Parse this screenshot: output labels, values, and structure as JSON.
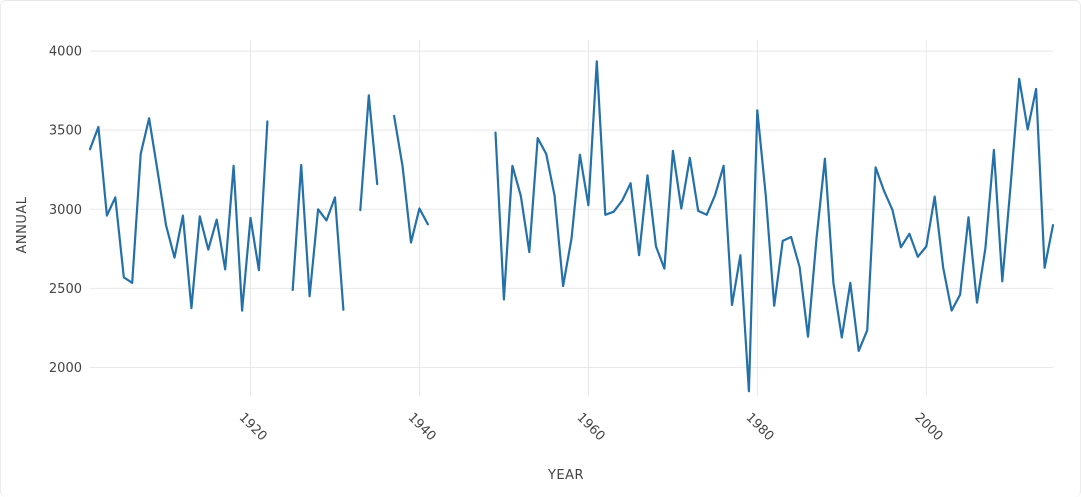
{
  "chart_data": {
    "type": "line",
    "xlabel": "YEAR",
    "ylabel": "ANNUAL",
    "x_ticks": [
      1920,
      1940,
      1960,
      1980,
      2000
    ],
    "y_ticks": [
      2000,
      2500,
      3000,
      3500,
      4000
    ],
    "xlim": [
      1901,
      2015
    ],
    "ylim": [
      1820,
      4070
    ],
    "grid": true,
    "color": "#2471a9",
    "series": [
      {
        "x": [
          1901,
          1902,
          1903,
          1904,
          1905,
          1906,
          1907,
          1908,
          1909,
          1910,
          1911,
          1912,
          1913,
          1914,
          1915,
          1916,
          1917,
          1918,
          1919,
          1920,
          1921,
          1922,
          1923,
          1924,
          1925,
          1926,
          1927,
          1928,
          1929,
          1930,
          1931,
          1932,
          1933,
          1934,
          1935,
          1936,
          1937,
          1938,
          1939,
          1940,
          1941,
          1942,
          1943,
          1944,
          1945,
          1946,
          1947,
          1948,
          1949,
          1950,
          1951,
          1952,
          1953,
          1954,
          1955,
          1956,
          1957,
          1958,
          1959,
          1960,
          1961,
          1962,
          1963,
          1964,
          1965,
          1966,
          1967,
          1968,
          1969,
          1970,
          1971,
          1972,
          1973,
          1974,
          1975,
          1976,
          1977,
          1978,
          1979,
          1980,
          1981,
          1982,
          1983,
          1984,
          1985,
          1986,
          1987,
          1988,
          1989,
          1990,
          1991,
          1992,
          1993,
          1994,
          1995,
          1996,
          1997,
          1998,
          1999,
          2000,
          2001,
          2002,
          2003,
          2004,
          2005,
          2006,
          2007,
          2008,
          2009,
          2010,
          2011,
          2012,
          2013,
          2014,
          2015
        ],
        "values": [
          3380,
          3520,
          2960,
          3075,
          2570,
          2535,
          3350,
          3575,
          3240,
          2900,
          2695,
          2960,
          2375,
          2955,
          2745,
          2935,
          2620,
          3275,
          2360,
          2945,
          2615,
          3555,
          null,
          null,
          2490,
          3280,
          2450,
          3000,
          2930,
          3075,
          2365,
          null,
          2995,
          3720,
          3160,
          null,
          3590,
          3270,
          2790,
          3005,
          2905,
          null,
          null,
          null,
          null,
          null,
          null,
          null,
          3485,
          2430,
          3275,
          3085,
          2730,
          3450,
          3350,
          3085,
          2515,
          2815,
          3345,
          3025,
          3935,
          2965,
          2985,
          3055,
          3165,
          2710,
          3215,
          2765,
          2625,
          3370,
          3005,
          3325,
          2990,
          2965,
          3090,
          3275,
          2395,
          2710,
          1850,
          3625,
          3085,
          2390,
          2800,
          2825,
          2635,
          2195,
          2815,
          3320,
          2535,
          2190,
          2535,
          2105,
          2235,
          3265,
          3115,
          2995,
          2760,
          2845,
          2700,
          2765,
          3080,
          2630,
          2360,
          2460,
          2950,
          2410,
          2755,
          3375,
          2545,
          3165,
          3825,
          3505,
          3760,
          2630,
          2900
        ]
      }
    ]
  }
}
